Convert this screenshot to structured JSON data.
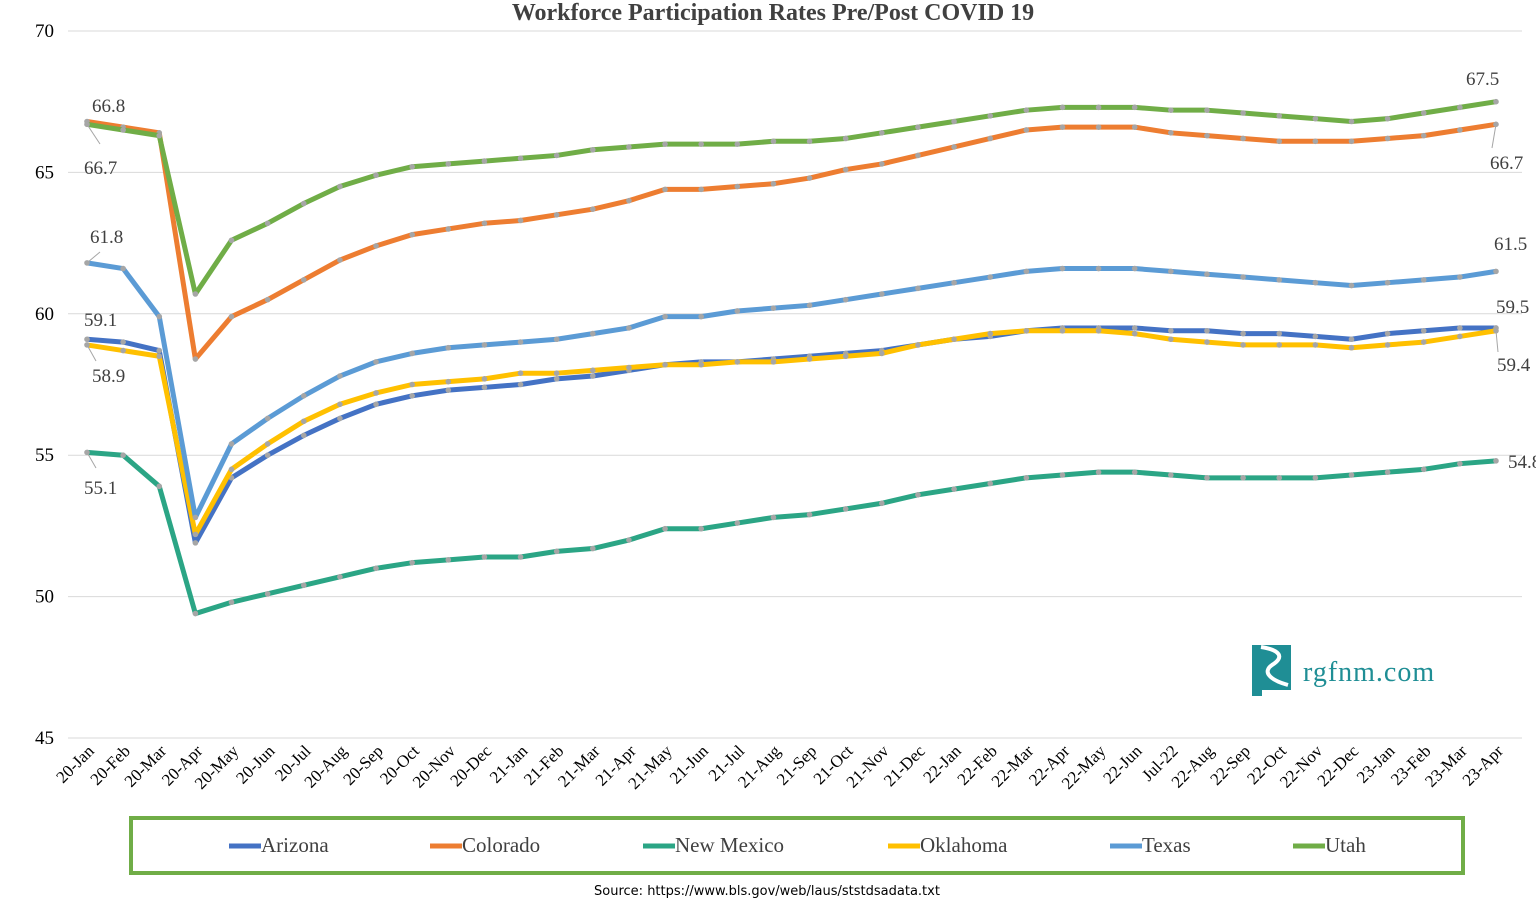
{
  "chart_data": {
    "type": "line",
    "title": "Workforce Participation Rates Pre/Post COVID 19",
    "xlabel": "",
    "ylabel": "",
    "ylim": [
      45,
      70
    ],
    "yticks": [
      45,
      50,
      55,
      60,
      65,
      70
    ],
    "grid": true,
    "legend_placement": "bottom",
    "categories": [
      "20-Jan",
      "20-Feb",
      "20-Mar",
      "20-Apr",
      "20-May",
      "20-Jun",
      "20-Jul",
      "20-Aug",
      "20-Sep",
      "20-Oct",
      "20-Nov",
      "20-Dec",
      "21-Jan",
      "21-Feb",
      "21-Mar",
      "21-Apr",
      "21-May",
      "21-Jun",
      "21-Jul",
      "21-Aug",
      "21-Sep",
      "21-Oct",
      "21-Nov",
      "21-Dec",
      "22-Jan",
      "22-Feb",
      "22-Mar",
      "22-Apr",
      "22-May",
      "22-Jun",
      "Jul-22",
      "22-Aug",
      "22-Sep",
      "22-Oct",
      "22-Nov",
      "22-Dec",
      "23-Jan",
      "23-Feb",
      "23-Mar",
      "23-Apr"
    ],
    "series": [
      {
        "name": "Arizona",
        "color": "#4472C4",
        "values": [
          59.1,
          59.0,
          58.7,
          51.9,
          54.2,
          55.0,
          55.7,
          56.3,
          56.8,
          57.1,
          57.3,
          57.4,
          57.5,
          57.7,
          57.8,
          58.0,
          58.2,
          58.3,
          58.3,
          58.4,
          58.5,
          58.6,
          58.7,
          58.9,
          59.1,
          59.2,
          59.4,
          59.5,
          59.5,
          59.5,
          59.4,
          59.4,
          59.3,
          59.3,
          59.2,
          59.1,
          59.3,
          59.4,
          59.5,
          59.5
        ]
      },
      {
        "name": "Colorado",
        "color": "#ED7D31",
        "values": [
          66.8,
          66.6,
          66.4,
          58.4,
          59.9,
          60.5,
          61.2,
          61.9,
          62.4,
          62.8,
          63.0,
          63.2,
          63.3,
          63.5,
          63.7,
          64.0,
          64.4,
          64.4,
          64.5,
          64.6,
          64.8,
          65.1,
          65.3,
          65.6,
          65.9,
          66.2,
          66.5,
          66.6,
          66.6,
          66.6,
          66.4,
          66.3,
          66.2,
          66.1,
          66.1,
          66.1,
          66.2,
          66.3,
          66.5,
          66.7
        ]
      },
      {
        "name": "New Mexico",
        "color": "#2BA585",
        "values": [
          55.1,
          55.0,
          53.9,
          49.4,
          49.8,
          50.1,
          50.4,
          50.7,
          51.0,
          51.2,
          51.3,
          51.4,
          51.4,
          51.6,
          51.7,
          52.0,
          52.4,
          52.4,
          52.6,
          52.8,
          52.9,
          53.1,
          53.3,
          53.6,
          53.8,
          54.0,
          54.2,
          54.3,
          54.4,
          54.4,
          54.3,
          54.2,
          54.2,
          54.2,
          54.2,
          54.3,
          54.4,
          54.5,
          54.7,
          54.8
        ]
      },
      {
        "name": "Oklahoma",
        "color": "#FFC000",
        "values": [
          58.9,
          58.7,
          58.5,
          52.2,
          54.5,
          55.4,
          56.2,
          56.8,
          57.2,
          57.5,
          57.6,
          57.7,
          57.9,
          57.9,
          58.0,
          58.1,
          58.2,
          58.2,
          58.3,
          58.3,
          58.4,
          58.5,
          58.6,
          58.9,
          59.1,
          59.3,
          59.4,
          59.4,
          59.4,
          59.3,
          59.1,
          59.0,
          58.9,
          58.9,
          58.9,
          58.8,
          58.9,
          59.0,
          59.2,
          59.4
        ]
      },
      {
        "name": "Texas",
        "color": "#5B9BD5",
        "values": [
          61.8,
          61.6,
          59.9,
          52.8,
          55.4,
          56.3,
          57.1,
          57.8,
          58.3,
          58.6,
          58.8,
          58.9,
          59.0,
          59.1,
          59.3,
          59.5,
          59.9,
          59.9,
          60.1,
          60.2,
          60.3,
          60.5,
          60.7,
          60.9,
          61.1,
          61.3,
          61.5,
          61.6,
          61.6,
          61.6,
          61.5,
          61.4,
          61.3,
          61.2,
          61.1,
          61.0,
          61.1,
          61.2,
          61.3,
          61.5
        ]
      },
      {
        "name": "Utah",
        "color": "#70AD47",
        "values": [
          66.7,
          66.5,
          66.3,
          60.7,
          62.6,
          63.2,
          63.9,
          64.5,
          64.9,
          65.2,
          65.3,
          65.4,
          65.5,
          65.6,
          65.8,
          65.9,
          66.0,
          66.0,
          66.0,
          66.1,
          66.1,
          66.2,
          66.4,
          66.6,
          66.8,
          67.0,
          67.2,
          67.3,
          67.3,
          67.3,
          67.2,
          67.2,
          67.1,
          67.0,
          66.9,
          66.8,
          66.9,
          67.1,
          67.3,
          67.5
        ]
      }
    ],
    "data_labels": {
      "start": {
        "Colorado": "66.8",
        "Utah": "66.7",
        "Texas": "61.8",
        "Arizona": "59.1",
        "Oklahoma": "58.9",
        "New Mexico": "55.1"
      },
      "end": {
        "Utah": "67.5",
        "Colorado": "66.7",
        "Texas": "61.5",
        "Arizona": "59.5",
        "Oklahoma": "59.4",
        "New Mexico": "54.8"
      }
    },
    "legend_border_color": "#70AD47",
    "marker_color": "#A6A6A6"
  },
  "logo": {
    "text": "rgfnm.com",
    "color": "#1F8E95"
  },
  "source": "Source: https://www.bls.gov/web/laus/ststdsadata.txt"
}
